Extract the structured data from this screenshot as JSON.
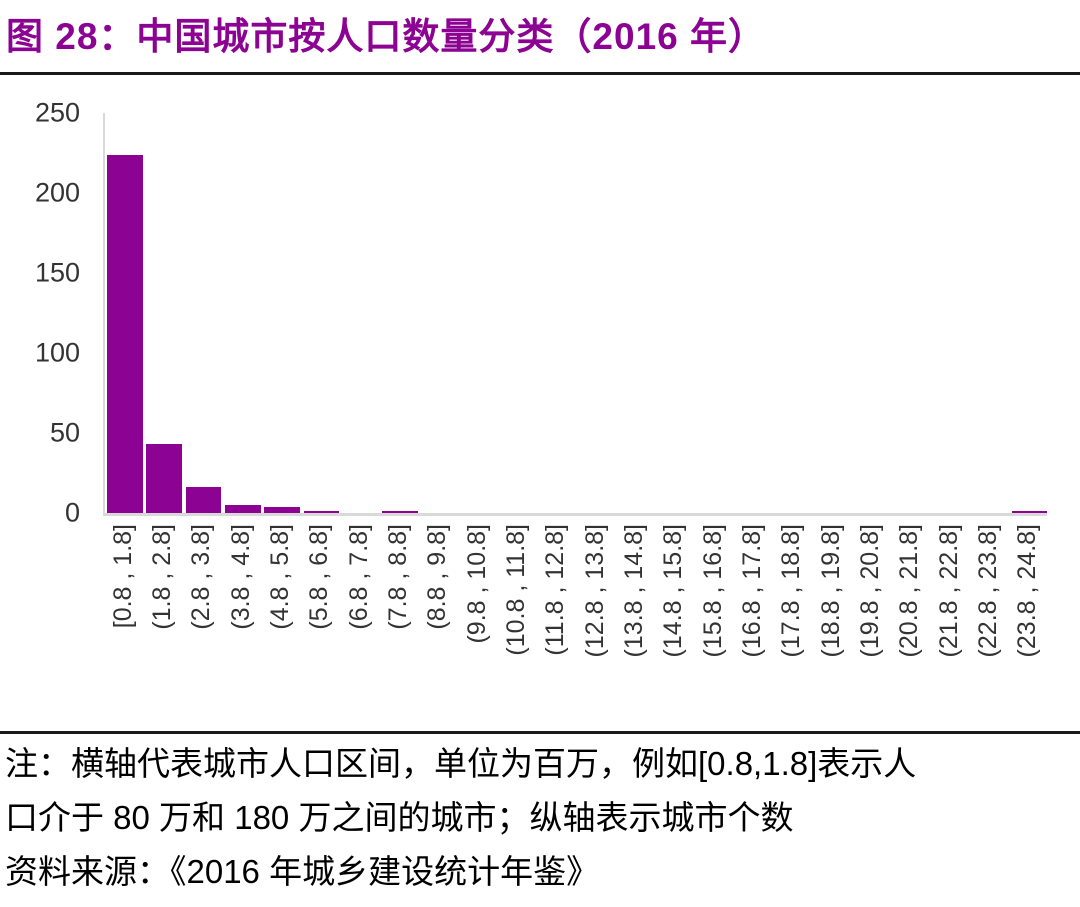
{
  "title": "图 28：中国城市按人口数量分类（2016 年）",
  "notes": {
    "line1": "注：横轴代表城市人口区间，单位为百万，例如[0.8,1.8]表示人",
    "line2": "口介于 80 万和 180 万之间的城市；纵轴表示城市个数",
    "line3": "资料来源：《2016 年城乡建设统计年鉴》"
  },
  "colors": {
    "bar": "#8C0292",
    "title_text": "#8C0292",
    "axis_line": "#D9D9D9",
    "tick_text": "#333333",
    "note_text": "#000000",
    "rule": "#1A1A1A"
  },
  "chart_data": {
    "type": "bar",
    "title": "图 28：中国城市按人口数量分类（2016 年）",
    "categories": [
      "[0.8 , 1.8]",
      "(1.8 , 2.8]",
      "(2.8 , 3.8]",
      "(3.8 , 4.8]",
      "(4.8 , 5.8]",
      "(5.8 , 6.8]",
      "(6.8 , 7.8]",
      "(7.8 , 8.8]",
      "(8.8 , 9.8]",
      "(9.8 , 10.8]",
      "(10.8 , 11.8]",
      "(11.8 , 12.8]",
      "(12.8 , 13.8]",
      "(13.8 , 14.8]",
      "(14.8 , 15.8]",
      "(15.8 , 16.8]",
      "(16.8 , 17.8]",
      "(17.8 , 18.8]",
      "(18.8 , 19.8]",
      "(19.8 , 20.8]",
      "(20.8 , 21.8]",
      "(21.8 , 22.8]",
      "(22.8 , 23.8]",
      "(23.8 , 24.8]"
    ],
    "values": [
      224,
      43,
      16,
      5,
      4,
      1,
      0,
      1,
      0,
      0,
      0,
      0,
      0,
      0,
      0,
      0,
      0,
      0,
      0,
      0,
      0,
      0,
      0,
      1
    ],
    "xlabel": "",
    "ylabel": "",
    "ylim": [
      0,
      250
    ],
    "yticks": [
      0,
      50,
      100,
      150,
      200,
      250
    ],
    "grid": "off",
    "legend": "none",
    "bar_orientation": "vertical",
    "x_tick_rotation_deg": 90
  }
}
